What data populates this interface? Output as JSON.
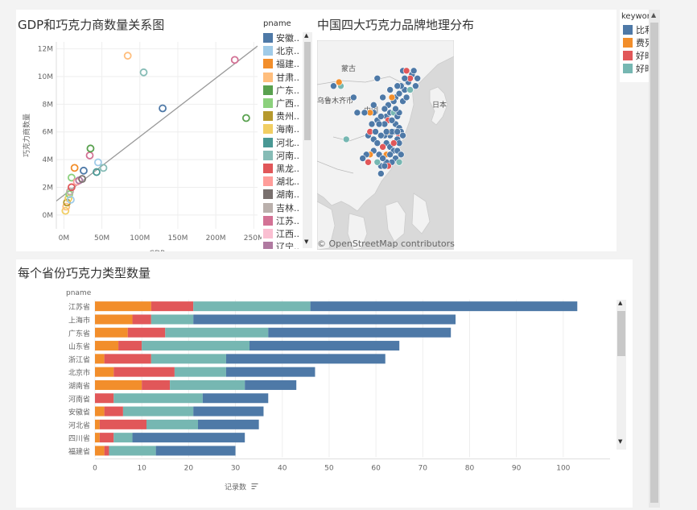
{
  "colors": {
    "accent_grid": "#e8e8e8",
    "page_bg": "#ffffff"
  },
  "scatter": {
    "title": "GDP和巧克力商数量关系图",
    "legend": {
      "title": "pname",
      "items": [
        {
          "label": "安徽..",
          "color": "#4e79a7"
        },
        {
          "label": "北京..",
          "color": "#a0cbe8"
        },
        {
          "label": "福建..",
          "color": "#f28e2b"
        },
        {
          "label": "甘肃..",
          "color": "#ffbe7d"
        },
        {
          "label": "广东..",
          "color": "#59a14f"
        },
        {
          "label": "广西..",
          "color": "#8cd17d"
        },
        {
          "label": "贵州..",
          "color": "#b6992d"
        },
        {
          "label": "海南..",
          "color": "#f1ce63"
        },
        {
          "label": "河北..",
          "color": "#499894"
        },
        {
          "label": "河南..",
          "color": "#86bcb6"
        },
        {
          "label": "黑龙..",
          "color": "#e15759"
        },
        {
          "label": "湖北..",
          "color": "#ff9d9a"
        },
        {
          "label": "湖南..",
          "color": "#79706e"
        },
        {
          "label": "吉林..",
          "color": "#bab0ac"
        },
        {
          "label": "江苏..",
          "color": "#d37295"
        },
        {
          "label": "江西..",
          "color": "#fabfd2"
        },
        {
          "label": "辽宁..",
          "color": "#b07aa1"
        }
      ]
    },
    "scroll_up": "▲",
    "scroll_down": "▼"
  },
  "map": {
    "title": "中国四大巧克力品牌地理分布",
    "labels": {
      "mongolia": "蒙古",
      "japan": "日本",
      "city": "乌鲁木齐市",
      "china": "中国"
    },
    "attribution": "© OpenStreetMap contributors",
    "legend": {
      "title": "keyword",
      "items": [
        {
          "label": "比利",
          "color": "#4e79a7"
        },
        {
          "label": "费列",
          "color": "#f28e2b"
        },
        {
          "label": "好时",
          "color": "#e15759"
        },
        {
          "label": "好时",
          "color": "#76b7b2"
        }
      ]
    }
  },
  "bar": {
    "title": "每个省份巧克力类型数量",
    "row_header": "pname",
    "scroll_up": "▲",
    "scroll_down": "▼"
  },
  "chart_data": [
    {
      "type": "scatter",
      "title": "GDP和巧克力商数量关系图",
      "xlabel": "GDP",
      "ylabel": "巧克力商数量",
      "xlim": [
        -10,
        255
      ],
      "ylim": [
        -1,
        12.5
      ],
      "x_ticks": [
        "0M",
        "50M",
        "100M",
        "150M",
        "200M",
        "250M"
      ],
      "y_ticks": [
        "0M",
        "2M",
        "4M",
        "6M",
        "8M",
        "10M",
        "12M"
      ],
      "trend_line": {
        "x": [
          -15,
          255
        ],
        "y": [
          0.8,
          12.2
        ]
      },
      "points": [
        {
          "x": 2,
          "y": 0.3,
          "color": "#f1ce63"
        },
        {
          "x": 3,
          "y": 0.6,
          "color": "#ffbe7d"
        },
        {
          "x": 4,
          "y": 0.9,
          "color": "#b6992d"
        },
        {
          "x": 6,
          "y": 1.2,
          "color": "#f1ce63"
        },
        {
          "x": 7,
          "y": 1.5,
          "color": "#8cd17d"
        },
        {
          "x": 8,
          "y": 1.7,
          "color": "#bab0ac"
        },
        {
          "x": 9,
          "y": 1.1,
          "color": "#a0cbe8"
        },
        {
          "x": 10,
          "y": 2.0,
          "color": "#e15759"
        },
        {
          "x": 10,
          "y": 2.7,
          "color": "#8cd17d"
        },
        {
          "x": 14,
          "y": 3.4,
          "color": "#f28e2b"
        },
        {
          "x": 17,
          "y": 2.4,
          "color": "#ff9d9a"
        },
        {
          "x": 20,
          "y": 2.5,
          "color": "#b07aa1"
        },
        {
          "x": 24,
          "y": 2.6,
          "color": "#79706e"
        },
        {
          "x": 26,
          "y": 3.2,
          "color": "#4e79a7"
        },
        {
          "x": 34,
          "y": 4.3,
          "color": "#d37295"
        },
        {
          "x": 35,
          "y": 4.8,
          "color": "#59a14f"
        },
        {
          "x": 43,
          "y": 3.1,
          "color": "#499894"
        },
        {
          "x": 45,
          "y": 3.8,
          "color": "#a0cbe8"
        },
        {
          "x": 52,
          "y": 3.4,
          "color": "#86bcb6"
        },
        {
          "x": 84,
          "y": 11.5,
          "color": "#ffbe7d"
        },
        {
          "x": 105,
          "y": 10.3,
          "color": "#86bcb6"
        },
        {
          "x": 130,
          "y": 7.7,
          "color": "#4e79a7"
        },
        {
          "x": 225,
          "y": 11.2,
          "color": "#d37295"
        },
        {
          "x": 240,
          "y": 7.0,
          "color": "#59a14f"
        }
      ]
    },
    {
      "type": "map",
      "title": "中国四大巧克力品牌地理分布",
      "series": [
        "比利",
        "费列",
        "好时",
        "好时"
      ],
      "points": [
        {
          "lon": 108,
          "lat": 45,
          "color": "#4e79a7"
        },
        {
          "lon": 115,
          "lat": 42,
          "color": "#4e79a7"
        },
        {
          "lon": 118,
          "lat": 40,
          "color": "#4e79a7"
        },
        {
          "lon": 120,
          "lat": 41,
          "color": "#4e79a7"
        },
        {
          "lon": 123,
          "lat": 42,
          "color": "#4e79a7"
        },
        {
          "lon": 125,
          "lat": 44,
          "color": "#4e79a7"
        },
        {
          "lon": 127,
          "lat": 46,
          "color": "#4e79a7"
        },
        {
          "lon": 126,
          "lat": 45,
          "color": "#e15759"
        },
        {
          "lon": 122,
          "lat": 47,
          "color": "#4e79a7"
        },
        {
          "lon": 117,
          "lat": 39,
          "color": "#4e79a7"
        },
        {
          "lon": 116,
          "lat": 40,
          "color": "#f28e2b"
        },
        {
          "lon": 114,
          "lat": 38,
          "color": "#4e79a7"
        },
        {
          "lon": 113,
          "lat": 35,
          "color": "#4e79a7"
        },
        {
          "lon": 115,
          "lat": 36,
          "color": "#4e79a7"
        },
        {
          "lon": 117,
          "lat": 36,
          "color": "#76b7b2"
        },
        {
          "lon": 119,
          "lat": 35,
          "color": "#4e79a7"
        },
        {
          "lon": 120,
          "lat": 36,
          "color": "#4e79a7"
        },
        {
          "lon": 118,
          "lat": 33,
          "color": "#4e79a7"
        },
        {
          "lon": 120,
          "lat": 32,
          "color": "#4e79a7"
        },
        {
          "lon": 121,
          "lat": 31,
          "color": "#4e79a7"
        },
        {
          "lon": 120,
          "lat": 30,
          "color": "#e15759"
        },
        {
          "lon": 119,
          "lat": 29,
          "color": "#4e79a7"
        },
        {
          "lon": 117,
          "lat": 31,
          "color": "#4e79a7"
        },
        {
          "lon": 115,
          "lat": 30,
          "color": "#4e79a7"
        },
        {
          "lon": 114,
          "lat": 31,
          "color": "#f28e2b"
        },
        {
          "lon": 112,
          "lat": 30,
          "color": "#4e79a7"
        },
        {
          "lon": 113,
          "lat": 28,
          "color": "#4e79a7"
        },
        {
          "lon": 111,
          "lat": 27,
          "color": "#e15759"
        },
        {
          "lon": 115,
          "lat": 27,
          "color": "#4e79a7"
        },
        {
          "lon": 117,
          "lat": 26,
          "color": "#4e79a7"
        },
        {
          "lon": 119,
          "lat": 26,
          "color": "#4e79a7"
        },
        {
          "lon": 118,
          "lat": 24,
          "color": "#4e79a7"
        },
        {
          "lon": 116,
          "lat": 23,
          "color": "#4e79a7"
        },
        {
          "lon": 113,
          "lat": 23,
          "color": "#4e79a7"
        },
        {
          "lon": 114,
          "lat": 22,
          "color": "#e15759"
        },
        {
          "lon": 110,
          "lat": 22,
          "color": "#4e79a7"
        },
        {
          "lon": 108,
          "lat": 23,
          "color": "#76b7b2"
        },
        {
          "lon": 106,
          "lat": 26,
          "color": "#4e79a7"
        },
        {
          "lon": 104,
          "lat": 25,
          "color": "#f28e2b"
        },
        {
          "lon": 102,
          "lat": 25,
          "color": "#4e79a7"
        },
        {
          "lon": 103,
          "lat": 30,
          "color": "#4e79a7"
        },
        {
          "lon": 104,
          "lat": 31,
          "color": "#e15759"
        },
        {
          "lon": 106,
          "lat": 29,
          "color": "#4e79a7"
        },
        {
          "lon": 108,
          "lat": 34,
          "color": "#4e79a7"
        },
        {
          "lon": 110,
          "lat": 35,
          "color": "#4e79a7"
        },
        {
          "lon": 106,
          "lat": 36,
          "color": "#4e79a7"
        },
        {
          "lon": 104,
          "lat": 36,
          "color": "#f28e2b"
        },
        {
          "lon": 101,
          "lat": 36,
          "color": "#4e79a7"
        },
        {
          "lon": 106,
          "lat": 38,
          "color": "#4e79a7"
        },
        {
          "lon": 111,
          "lat": 40,
          "color": "#4e79a7"
        },
        {
          "lon": 112,
          "lat": 37,
          "color": "#4e79a7"
        },
        {
          "lon": 110,
          "lat": 20,
          "color": "#4e79a7"
        },
        {
          "lon": 120,
          "lat": 23,
          "color": "#76b7b2"
        },
        {
          "lon": 121,
          "lat": 25,
          "color": "#4e79a7"
        },
        {
          "lon": 88,
          "lat": 43,
          "color": "#76b7b2"
        },
        {
          "lon": 84,
          "lat": 43,
          "color": "#4e79a7"
        },
        {
          "lon": 91,
          "lat": 29,
          "color": "#76b7b2"
        },
        {
          "lon": 97,
          "lat": 36,
          "color": "#4e79a7"
        },
        {
          "lon": 87,
          "lat": 44,
          "color": "#f28e2b"
        },
        {
          "lon": 95,
          "lat": 40,
          "color": "#4e79a7"
        },
        {
          "lon": 122,
          "lat": 39,
          "color": "#4e79a7"
        },
        {
          "lon": 124,
          "lat": 40,
          "color": "#4e79a7"
        },
        {
          "lon": 128,
          "lat": 47,
          "color": "#4e79a7"
        },
        {
          "lon": 130,
          "lat": 45,
          "color": "#4e79a7"
        },
        {
          "lon": 121,
          "lat": 43,
          "color": "#4e79a7"
        },
        {
          "lon": 126,
          "lat": 42,
          "color": "#76b7b2"
        },
        {
          "lon": 114,
          "lat": 34,
          "color": "#e15759"
        },
        {
          "lon": 116,
          "lat": 34,
          "color": "#4e79a7"
        },
        {
          "lon": 118,
          "lat": 37,
          "color": "#4e79a7"
        },
        {
          "lon": 112,
          "lat": 33,
          "color": "#4e79a7"
        },
        {
          "lon": 110,
          "lat": 30,
          "color": "#4e79a7"
        },
        {
          "lon": 108,
          "lat": 28,
          "color": "#4e79a7"
        },
        {
          "lon": 113,
          "lat": 25,
          "color": "#f28e2b"
        },
        {
          "lon": 115,
          "lat": 25,
          "color": "#4e79a7"
        },
        {
          "lon": 112,
          "lat": 22,
          "color": "#4e79a7"
        },
        {
          "lon": 105,
          "lat": 33,
          "color": "#4e79a7"
        },
        {
          "lon": 109,
          "lat": 25,
          "color": "#4e79a7"
        },
        {
          "lon": 107,
          "lat": 31,
          "color": "#4e79a7"
        },
        {
          "lon": 122,
          "lat": 30,
          "color": "#4e79a7"
        },
        {
          "lon": 120,
          "lat": 28,
          "color": "#4e79a7"
        },
        {
          "lon": 117,
          "lat": 28,
          "color": "#e15759"
        },
        {
          "lon": 111,
          "lat": 24,
          "color": "#4e79a7"
        },
        {
          "lon": 103,
          "lat": 23,
          "color": "#e15759"
        },
        {
          "lon": 100,
          "lat": 24,
          "color": "#4e79a7"
        },
        {
          "lon": 123,
          "lat": 45,
          "color": "#4e79a7"
        },
        {
          "lon": 119,
          "lat": 43,
          "color": "#4e79a7"
        },
        {
          "lon": 124,
          "lat": 47,
          "color": "#e15759"
        },
        {
          "lon": 129,
          "lat": 43,
          "color": "#4e79a7"
        },
        {
          "lon": 116,
          "lat": 31,
          "color": "#4e79a7"
        },
        {
          "lon": 119,
          "lat": 31,
          "color": "#4e79a7"
        },
        {
          "lon": 113,
          "lat": 31,
          "color": "#4e79a7"
        },
        {
          "lon": 109,
          "lat": 33,
          "color": "#4e79a7"
        }
      ]
    },
    {
      "type": "bar",
      "title": "每个省份巧克力类型数量",
      "orientation": "horizontal",
      "stacked": true,
      "xlabel": "记录数",
      "xlim": [
        0,
        110
      ],
      "x_ticks": [
        0,
        10,
        20,
        30,
        40,
        50,
        60,
        70,
        80,
        90,
        100
      ],
      "categories": [
        "江苏省",
        "上海市",
        "广东省",
        "山东省",
        "浙江省",
        "北京市",
        "湖南省",
        "河南省",
        "安徽省",
        "河北省",
        "四川省",
        "福建省"
      ],
      "series": [
        {
          "color": "#f28e2b",
          "values": [
            12,
            8,
            7,
            5,
            2,
            4,
            10,
            0,
            2,
            1,
            1,
            2
          ]
        },
        {
          "color": "#e15759",
          "values": [
            9,
            4,
            8,
            5,
            10,
            13,
            6,
            4,
            4,
            10,
            3,
            1
          ]
        },
        {
          "color": "#76b7b2",
          "values": [
            25,
            9,
            22,
            23,
            16,
            11,
            16,
            19,
            15,
            11,
            4,
            10
          ]
        },
        {
          "color": "#4e79a7",
          "values": [
            57,
            56,
            39,
            32,
            34,
            19,
            11,
            14,
            15,
            13,
            24,
            17
          ]
        }
      ]
    }
  ]
}
